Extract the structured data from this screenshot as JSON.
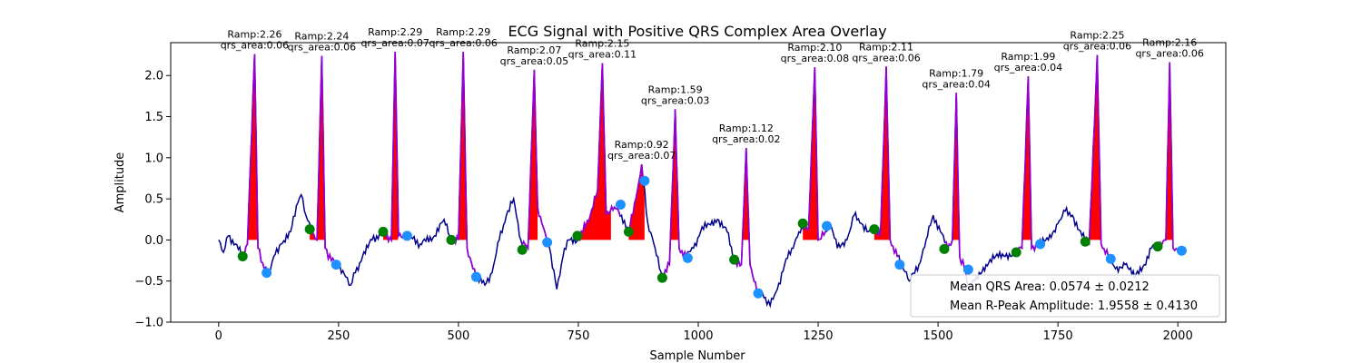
{
  "chart_data": {
    "type": "line",
    "title": "ECG Signal with Positive QRS Complex Area Overlay",
    "xlabel": "Sample Number",
    "ylabel": "Amplitude",
    "xlim": [
      -100,
      2100
    ],
    "ylim": [
      -1.0,
      2.4
    ],
    "xticks": [
      0,
      250,
      500,
      750,
      1000,
      1250,
      1500,
      1750,
      2000
    ],
    "yticks": [
      -1.0,
      -0.5,
      0.0,
      0.5,
      1.0,
      1.5,
      2.0
    ],
    "ytick_labels": [
      "−1.0",
      "−0.5",
      "0.0",
      "0.5",
      "1.0",
      "1.5",
      "2.0"
    ],
    "colors": {
      "signal": "#00008b",
      "qrs_segment": "#9400d3",
      "area_fill": "#ff0000",
      "onset_marker": "#008000",
      "offset_marker": "#1e90ff"
    },
    "signal_anchors": [
      [
        0,
        0.0
      ],
      [
        10,
        -0.15
      ],
      [
        20,
        0.05
      ],
      [
        35,
        -0.05
      ],
      [
        50,
        -0.2
      ],
      [
        60,
        -0.05
      ],
      [
        75,
        2.26
      ],
      [
        82,
        -0.1
      ],
      [
        95,
        -0.35
      ],
      [
        105,
        -0.4
      ],
      [
        115,
        -0.2
      ],
      [
        130,
        -0.05
      ],
      [
        150,
        0.1
      ],
      [
        165,
        0.45
      ],
      [
        172,
        0.55
      ],
      [
        182,
        0.3
      ],
      [
        195,
        0.1
      ],
      [
        205,
        0.0
      ],
      [
        215,
        2.24
      ],
      [
        222,
        -0.1
      ],
      [
        235,
        -0.25
      ],
      [
        250,
        -0.3
      ],
      [
        265,
        -0.45
      ],
      [
        275,
        -0.55
      ],
      [
        285,
        -0.4
      ],
      [
        300,
        -0.2
      ],
      [
        320,
        0.0
      ],
      [
        345,
        0.1
      ],
      [
        360,
        0.0
      ],
      [
        368,
        2.29
      ],
      [
        375,
        0.05
      ],
      [
        395,
        0.05
      ],
      [
        420,
        -0.05
      ],
      [
        450,
        0.05
      ],
      [
        470,
        0.25
      ],
      [
        485,
        0.0
      ],
      [
        500,
        0.0
      ],
      [
        510,
        2.29
      ],
      [
        518,
        -0.1
      ],
      [
        530,
        -0.35
      ],
      [
        540,
        -0.45
      ],
      [
        555,
        -0.55
      ],
      [
        570,
        -0.4
      ],
      [
        585,
        0.0
      ],
      [
        600,
        0.3
      ],
      [
        615,
        0.5
      ],
      [
        630,
        0.0
      ],
      [
        645,
        -0.1
      ],
      [
        658,
        2.07
      ],
      [
        665,
        0.4
      ],
      [
        680,
        0.1
      ],
      [
        690,
        -0.1
      ],
      [
        705,
        -0.6
      ],
      [
        718,
        -0.2
      ],
      [
        730,
        0.0
      ],
      [
        750,
        0.0
      ],
      [
        775,
        0.3
      ],
      [
        790,
        0.6
      ],
      [
        800,
        2.15
      ],
      [
        808,
        0.3
      ],
      [
        825,
        0.4
      ],
      [
        840,
        0.3
      ],
      [
        855,
        0.1
      ],
      [
        870,
        0.5
      ],
      [
        882,
        0.92
      ],
      [
        895,
        0.2
      ],
      [
        910,
        -0.1
      ],
      [
        925,
        -0.45
      ],
      [
        940,
        -0.3
      ],
      [
        952,
        1.59
      ],
      [
        960,
        -0.1
      ],
      [
        975,
        -0.2
      ],
      [
        990,
        -0.1
      ],
      [
        1005,
        0.1
      ],
      [
        1020,
        0.2
      ],
      [
        1040,
        0.25
      ],
      [
        1060,
        0.1
      ],
      [
        1075,
        -0.25
      ],
      [
        1090,
        -0.3
      ],
      [
        1100,
        1.12
      ],
      [
        1108,
        -0.3
      ],
      [
        1125,
        -0.65
      ],
      [
        1140,
        -0.7
      ],
      [
        1150,
        -0.8
      ],
      [
        1165,
        -0.6
      ],
      [
        1180,
        -0.3
      ],
      [
        1195,
        -0.1
      ],
      [
        1210,
        0.1
      ],
      [
        1230,
        0.15
      ],
      [
        1243,
        2.1
      ],
      [
        1250,
        0.0
      ],
      [
        1265,
        0.1
      ],
      [
        1275,
        0.2
      ],
      [
        1290,
        -0.1
      ],
      [
        1310,
        0.0
      ],
      [
        1325,
        0.3
      ],
      [
        1340,
        0.2
      ],
      [
        1355,
        0.1
      ],
      [
        1370,
        0.15
      ],
      [
        1380,
        0.05
      ],
      [
        1392,
        2.11
      ],
      [
        1400,
        0.0
      ],
      [
        1415,
        -0.2
      ],
      [
        1425,
        -0.3
      ],
      [
        1440,
        -0.5
      ],
      [
        1460,
        -0.3
      ],
      [
        1475,
        0.0
      ],
      [
        1490,
        0.3
      ],
      [
        1505,
        0.1
      ],
      [
        1520,
        -0.1
      ],
      [
        1530,
        0.0
      ],
      [
        1538,
        1.79
      ],
      [
        1545,
        -0.2
      ],
      [
        1555,
        -0.35
      ],
      [
        1565,
        -0.6
      ],
      [
        1580,
        -0.45
      ],
      [
        1600,
        -0.3
      ],
      [
        1620,
        -0.2
      ],
      [
        1640,
        -0.2
      ],
      [
        1660,
        -0.15
      ],
      [
        1675,
        -0.1
      ],
      [
        1688,
        1.99
      ],
      [
        1695,
        -0.1
      ],
      [
        1710,
        -0.05
      ],
      [
        1730,
        0.0
      ],
      [
        1750,
        0.2
      ],
      [
        1765,
        0.35
      ],
      [
        1780,
        0.3
      ],
      [
        1800,
        0.05
      ],
      [
        1815,
        -0.05
      ],
      [
        1832,
        2.25
      ],
      [
        1840,
        -0.05
      ],
      [
        1855,
        -0.2
      ],
      [
        1870,
        -0.35
      ],
      [
        1890,
        -0.3
      ],
      [
        1910,
        -0.45
      ],
      [
        1930,
        -0.3
      ],
      [
        1945,
        -0.1
      ],
      [
        1960,
        -0.05
      ],
      [
        1975,
        0.0
      ],
      [
        1983,
        2.16
      ],
      [
        1990,
        -0.1
      ],
      [
        2000,
        -0.12
      ]
    ],
    "beats": [
      {
        "r_x": 75,
        "r_y": 2.26,
        "onset": [
          50,
          -0.2
        ],
        "offset": [
          100,
          -0.4
        ],
        "label_ramp": "Ramp:2.26",
        "label_area": "qrs_area:0.06"
      },
      {
        "r_x": 215,
        "r_y": 2.24,
        "onset": [
          190,
          0.13
        ],
        "offset": [
          245,
          -0.3
        ],
        "label_ramp": "Ramp:2.24",
        "label_area": "qrs_area:0.06"
      },
      {
        "r_x": 368,
        "r_y": 2.29,
        "onset": [
          343,
          0.1
        ],
        "offset": [
          393,
          0.05
        ],
        "label_ramp": "Ramp:2.29",
        "label_area": "qrs_area:0.07"
      },
      {
        "r_x": 510,
        "r_y": 2.29,
        "onset": [
          485,
          0.0
        ],
        "offset": [
          537,
          -0.45
        ],
        "label_ramp": "Ramp:2.29",
        "label_area": "qrs_area:0.06"
      },
      {
        "r_x": 658,
        "r_y": 2.07,
        "onset": [
          633,
          -0.12
        ],
        "offset": [
          685,
          -0.03
        ],
        "label_ramp": "Ramp:2.07",
        "label_area": "qrs_area:0.05"
      },
      {
        "r_x": 800,
        "r_y": 2.15,
        "onset": [
          748,
          0.05
        ],
        "offset": [
          838,
          0.43
        ],
        "label_ramp": "Ramp:2.15",
        "label_area": "qrs_area:0.11"
      },
      {
        "r_x": 882,
        "r_y": 0.92,
        "onset": [
          855,
          0.1
        ],
        "offset": [
          888,
          0.72
        ],
        "label_ramp": "Ramp:0.92",
        "label_area": "qrs_area:0.07"
      },
      {
        "r_x": 952,
        "r_y": 1.59,
        "onset": [
          925,
          -0.46
        ],
        "offset": [
          978,
          -0.22
        ],
        "label_ramp": "Ramp:1.59",
        "label_area": "qrs_area:0.03"
      },
      {
        "r_x": 1100,
        "r_y": 1.12,
        "onset": [
          1075,
          -0.24
        ],
        "offset": [
          1125,
          -0.65
        ],
        "label_ramp": "Ramp:1.12",
        "label_area": "qrs_area:0.02"
      },
      {
        "r_x": 1243,
        "r_y": 2.1,
        "onset": [
          1218,
          0.2
        ],
        "offset": [
          1268,
          0.17
        ],
        "label_ramp": "Ramp:2.10",
        "label_area": "qrs_area:0.08"
      },
      {
        "r_x": 1392,
        "r_y": 2.11,
        "onset": [
          1367,
          0.13
        ],
        "offset": [
          1420,
          -0.3
        ],
        "label_ramp": "Ramp:2.11",
        "label_area": "qrs_area:0.06"
      },
      {
        "r_x": 1538,
        "r_y": 1.79,
        "onset": [
          1513,
          -0.11
        ],
        "offset": [
          1563,
          -0.36
        ],
        "label_ramp": "Ramp:1.79",
        "label_area": "qrs_area:0.04"
      },
      {
        "r_x": 1688,
        "r_y": 1.99,
        "onset": [
          1663,
          -0.15
        ],
        "offset": [
          1713,
          -0.05
        ],
        "label_ramp": "Ramp:1.99",
        "label_area": "qrs_area:0.04"
      },
      {
        "r_x": 1832,
        "r_y": 2.25,
        "onset": [
          1807,
          -0.02
        ],
        "offset": [
          1860,
          -0.23
        ],
        "label_ramp": "Ramp:2.25",
        "label_area": "qrs_area:0.06"
      },
      {
        "r_x": 1983,
        "r_y": 2.16,
        "onset": [
          1958,
          -0.08
        ],
        "offset": [
          2008,
          -0.13
        ],
        "label_ramp": "Ramp:2.16",
        "label_area": "qrs_area:0.06"
      }
    ],
    "legend": {
      "placement": "lower-right",
      "entries": [
        "Mean QRS Area: 0.0574 ± 0.0212",
        "Mean R-Peak Amplitude: 1.9558 ± 0.4130"
      ]
    }
  }
}
